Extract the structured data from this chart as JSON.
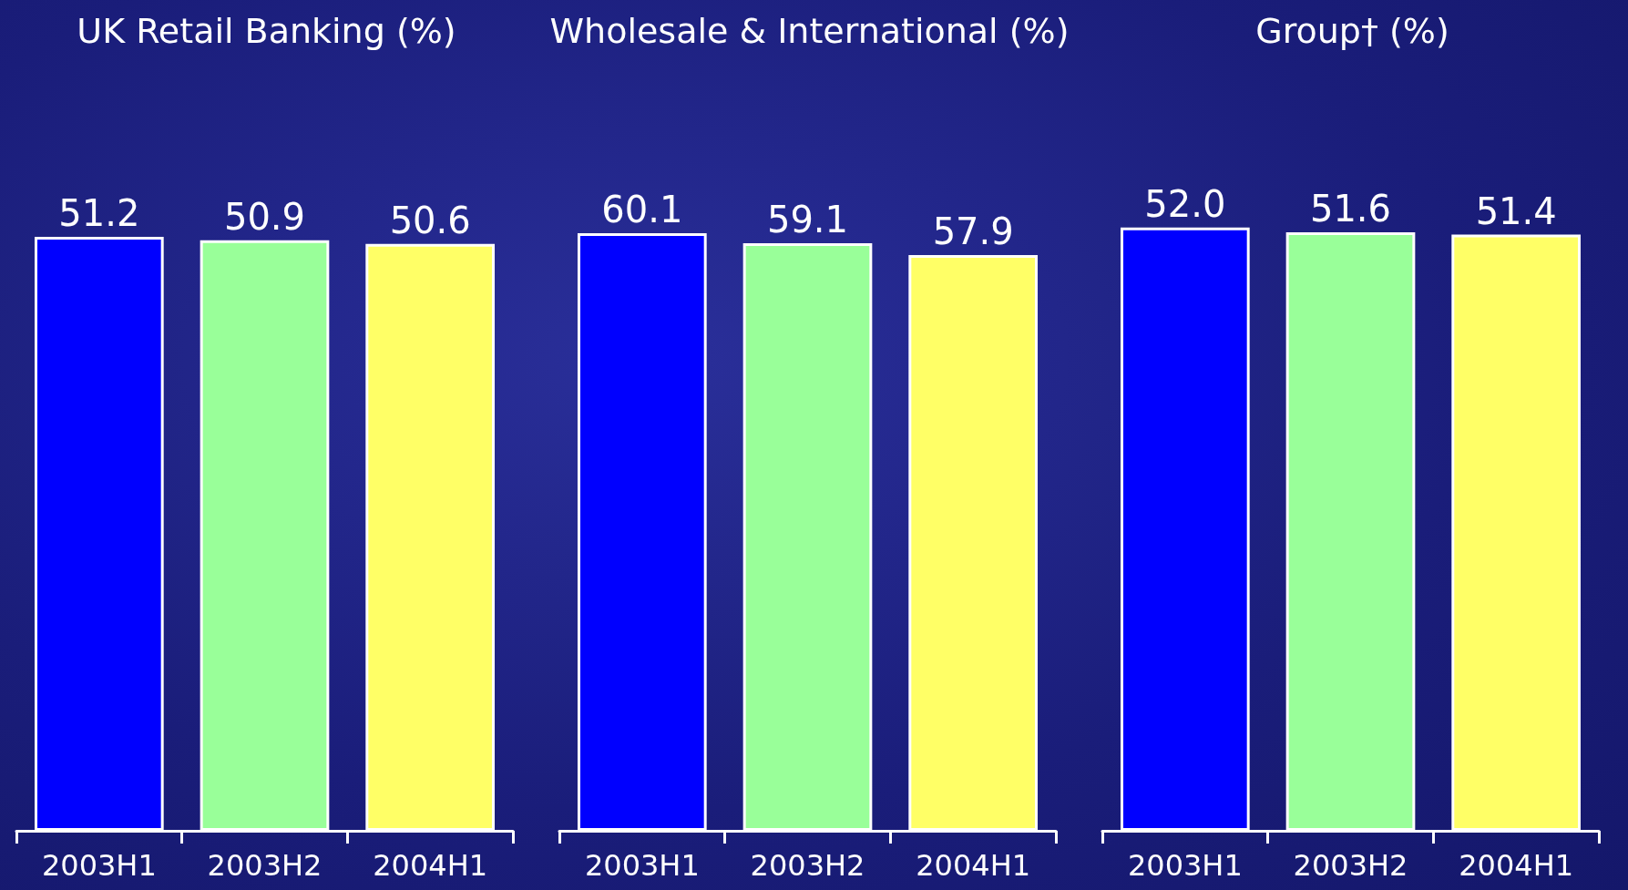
{
  "chart_data": [
    {
      "type": "bar",
      "title": "UK Retail Banking (%)",
      "categories": [
        "2003H1",
        "2003H2",
        "2004H1"
      ],
      "values": [
        51.2,
        50.9,
        50.6
      ],
      "value_labels": [
        "51.2",
        "50.9",
        "50.6"
      ],
      "colors": [
        "#0000ff",
        "#99ff99",
        "#ffff66"
      ],
      "tick_labels": "x"
    },
    {
      "type": "bar",
      "title": "Wholesale & International (%)",
      "categories": [
        "2003H1",
        "2003H2",
        "2004H1"
      ],
      "values": [
        60.1,
        59.1,
        57.9
      ],
      "value_labels": [
        "60.1",
        "59.1",
        "57.9"
      ],
      "colors": [
        "#0000ff",
        "#99ff99",
        "#ffff66"
      ],
      "tick_labels": "x"
    },
    {
      "type": "bar",
      "title": "Group† (%)",
      "categories": [
        "2003H1",
        "2003H2",
        "2004H1"
      ],
      "values": [
        52.0,
        51.6,
        51.4
      ],
      "value_labels": [
        "52.0",
        "51.6",
        "51.4"
      ],
      "colors": [
        "#0000ff",
        "#99ff99",
        "#ffff66"
      ],
      "tick_labels": "x"
    }
  ]
}
